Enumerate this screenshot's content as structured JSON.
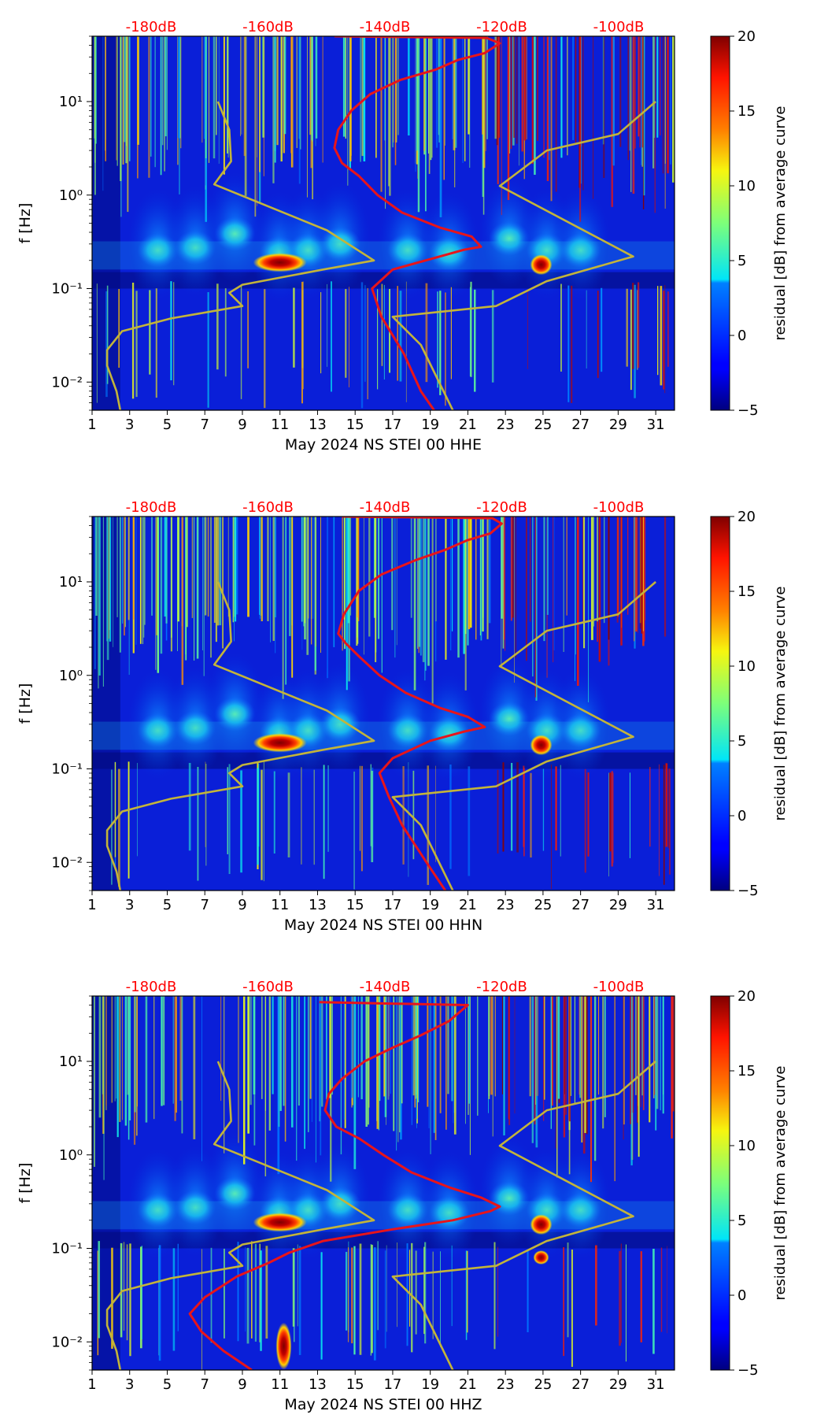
{
  "figure": {
    "colors": {
      "red_curve": "#e8141a",
      "yellow_curve": "#c3b43a",
      "db_label": "#ff0000",
      "axis": "#000000"
    }
  },
  "chart_data": [
    {
      "type": "heatmap",
      "title": "",
      "xlabel": "May 2024 NS STEI 00 HHE",
      "ylabel": "f [Hz]",
      "x_ticks": [
        "1",
        "3",
        "5",
        "7",
        "9",
        "11",
        "13",
        "15",
        "17",
        "19",
        "21",
        "23",
        "25",
        "27",
        "29",
        "31"
      ],
      "y_ticks": [
        "10⁻²",
        "10⁻¹",
        "10⁰",
        "10¹"
      ],
      "xlim": [
        1,
        32
      ],
      "ylim": [
        0.005,
        50
      ],
      "top_ticks": [
        "-180dB",
        "-160dB",
        "-140dB",
        "-120dB",
        "-100dB"
      ],
      "colorbar": {
        "label": "residual [dB] from average curve",
        "ticks": [
          "20",
          "15",
          "10",
          "5",
          "0",
          "−5"
        ],
        "range": [
          -5,
          20
        ]
      },
      "series": [
        {
          "name": "median PSD (red)",
          "points": [
            [
              19.2,
              0.005
            ],
            [
              18.5,
              0.008
            ],
            [
              17.6,
              0.02
            ],
            [
              16.4,
              0.05
            ],
            [
              15.9,
              0.1
            ],
            [
              17,
              0.16
            ],
            [
              19.5,
              0.22
            ],
            [
              20.8,
              0.26
            ],
            [
              21.7,
              0.28
            ],
            [
              21.2,
              0.36
            ],
            [
              19.5,
              0.45
            ],
            [
              17.5,
              0.65
            ],
            [
              16.2,
              1
            ],
            [
              15.2,
              1.6
            ],
            [
              14.3,
              2.2
            ],
            [
              13.9,
              3.2
            ],
            [
              14.1,
              5
            ],
            [
              14.8,
              8
            ],
            [
              15.8,
              12
            ],
            [
              17.4,
              17
            ],
            [
              19.3,
              22
            ],
            [
              20.5,
              28
            ],
            [
              21.9,
              33
            ],
            [
              22.7,
              42
            ],
            [
              22,
              48
            ],
            [
              13.9,
              50
            ]
          ]
        },
        {
          "name": "noise model (yellow)",
          "points": [
            [
              2.5,
              0.005
            ],
            [
              2.3,
              0.008
            ],
            [
              1.8,
              0.015
            ],
            [
              1.8,
              0.022
            ],
            [
              2.6,
              0.035
            ],
            [
              5.2,
              0.048
            ],
            [
              9,
              0.065
            ],
            [
              8.3,
              0.09
            ],
            [
              9,
              0.11
            ],
            [
              13.3,
              0.16
            ],
            [
              16,
              0.2
            ],
            [
              13.5,
              0.42
            ],
            [
              7.5,
              1.3
            ],
            [
              8.4,
              2.3
            ],
            [
              8.3,
              5
            ],
            [
              7.7,
              10
            ]
          ]
        },
        {
          "name": "noise model high (yellow)",
          "points": [
            [
              20.2,
              0.005
            ],
            [
              18.5,
              0.025
            ],
            [
              17,
              0.05
            ],
            [
              22.5,
              0.065
            ],
            [
              25.2,
              0.12
            ],
            [
              29.8,
              0.22
            ],
            [
              22.7,
              1.25
            ],
            [
              25.2,
              3
            ],
            [
              29,
              4.5
            ],
            [
              31,
              10
            ]
          ]
        }
      ]
    },
    {
      "type": "heatmap",
      "title": "",
      "xlabel": "May 2024 NS STEI 00 HHN",
      "ylabel": "f [Hz]",
      "x_ticks": [
        "1",
        "3",
        "5",
        "7",
        "9",
        "11",
        "13",
        "15",
        "17",
        "19",
        "21",
        "23",
        "25",
        "27",
        "29",
        "31"
      ],
      "y_ticks": [
        "10⁻²",
        "10⁻¹",
        "10⁰",
        "10¹"
      ],
      "xlim": [
        1,
        32
      ],
      "ylim": [
        0.005,
        50
      ],
      "top_ticks": [
        "-180dB",
        "-160dB",
        "-140dB",
        "-120dB",
        "-100dB"
      ],
      "colorbar": {
        "label": "residual [dB] from average curve",
        "ticks": [
          "20",
          "15",
          "10",
          "5",
          "0",
          "−5"
        ],
        "range": [
          -5,
          20
        ]
      },
      "series": [
        {
          "name": "median PSD (red)",
          "points": [
            [
              19.8,
              0.005
            ],
            [
              18.8,
              0.01
            ],
            [
              17.5,
              0.025
            ],
            [
              16.8,
              0.05
            ],
            [
              16.3,
              0.09
            ],
            [
              17,
              0.13
            ],
            [
              19,
              0.2
            ],
            [
              20.8,
              0.25
            ],
            [
              21.9,
              0.28
            ],
            [
              21,
              0.36
            ],
            [
              19.5,
              0.45
            ],
            [
              17.7,
              0.65
            ],
            [
              16.3,
              1
            ],
            [
              15.2,
              1.6
            ],
            [
              14.5,
              2.2
            ],
            [
              14.1,
              2.8
            ],
            [
              14.4,
              4.5
            ],
            [
              15.2,
              8
            ],
            [
              16.4,
              12
            ],
            [
              18.2,
              17
            ],
            [
              19.8,
              22
            ],
            [
              21,
              28
            ],
            [
              22.2,
              33
            ],
            [
              22.8,
              42
            ],
            [
              22.3,
              48
            ],
            [
              14.3,
              50
            ]
          ]
        },
        {
          "name": "noise model (yellow)",
          "points": [
            [
              2.5,
              0.005
            ],
            [
              2.3,
              0.008
            ],
            [
              1.8,
              0.015
            ],
            [
              1.8,
              0.022
            ],
            [
              2.6,
              0.035
            ],
            [
              5.2,
              0.048
            ],
            [
              9,
              0.065
            ],
            [
              8.3,
              0.09
            ],
            [
              9,
              0.11
            ],
            [
              13.3,
              0.16
            ],
            [
              16,
              0.2
            ],
            [
              13.5,
              0.42
            ],
            [
              7.5,
              1.3
            ],
            [
              8.4,
              2.3
            ],
            [
              8.3,
              5
            ],
            [
              7.7,
              10
            ]
          ]
        },
        {
          "name": "noise model high (yellow)",
          "points": [
            [
              20.2,
              0.005
            ],
            [
              18.5,
              0.025
            ],
            [
              17,
              0.05
            ],
            [
              22.5,
              0.065
            ],
            [
              25.2,
              0.12
            ],
            [
              29.8,
              0.22
            ],
            [
              22.7,
              1.25
            ],
            [
              25.2,
              3
            ],
            [
              29,
              4.5
            ],
            [
              31,
              10
            ]
          ]
        }
      ]
    },
    {
      "type": "heatmap",
      "title": "",
      "xlabel": "May 2024 NS STEI 00 HHZ",
      "ylabel": "f [Hz]",
      "x_ticks": [
        "1",
        "3",
        "5",
        "7",
        "9",
        "11",
        "13",
        "15",
        "17",
        "19",
        "21",
        "23",
        "25",
        "27",
        "29",
        "31"
      ],
      "y_ticks": [
        "10⁻²",
        "10⁻¹",
        "10⁰",
        "10¹"
      ],
      "xlim": [
        1,
        32
      ],
      "ylim": [
        0.005,
        50
      ],
      "top_ticks": [
        "-180dB",
        "-160dB",
        "-140dB",
        "-120dB",
        "-100dB"
      ],
      "colorbar": {
        "label": "residual [dB] from average curve",
        "ticks": [
          "20",
          "15",
          "10",
          "5",
          "0",
          "−5"
        ],
        "range": [
          -5,
          20
        ]
      },
      "series": [
        {
          "name": "median PSD (red)",
          "points": [
            [
              9.5,
              0.005
            ],
            [
              8,
              0.008
            ],
            [
              6.8,
              0.013
            ],
            [
              6.2,
              0.02
            ],
            [
              7,
              0.03
            ],
            [
              8.7,
              0.05
            ],
            [
              10.4,
              0.07
            ],
            [
              11.5,
              0.09
            ],
            [
              13.3,
              0.12
            ],
            [
              17,
              0.16
            ],
            [
              20.2,
              0.2
            ],
            [
              22.2,
              0.25
            ],
            [
              22.7,
              0.28
            ],
            [
              21.7,
              0.35
            ],
            [
              20,
              0.45
            ],
            [
              18,
              0.65
            ],
            [
              16.5,
              1
            ],
            [
              15.2,
              1.5
            ],
            [
              14,
              2
            ],
            [
              13.4,
              3
            ],
            [
              13.6,
              4.5
            ],
            [
              14.3,
              6.5
            ],
            [
              15.5,
              10
            ],
            [
              17,
              14
            ],
            [
              18.5,
              19
            ],
            [
              20,
              27
            ],
            [
              21,
              40
            ],
            [
              13.1,
              43
            ]
          ]
        },
        {
          "name": "noise model (yellow)",
          "points": [
            [
              2.5,
              0.005
            ],
            [
              2.3,
              0.008
            ],
            [
              1.8,
              0.015
            ],
            [
              1.8,
              0.022
            ],
            [
              2.6,
              0.035
            ],
            [
              5.2,
              0.048
            ],
            [
              9,
              0.065
            ],
            [
              8.3,
              0.09
            ],
            [
              9,
              0.11
            ],
            [
              13.3,
              0.16
            ],
            [
              16,
              0.2
            ],
            [
              13.5,
              0.42
            ],
            [
              7.5,
              1.3
            ],
            [
              8.4,
              2.3
            ],
            [
              8.3,
              5
            ],
            [
              7.7,
              10
            ]
          ]
        },
        {
          "name": "noise model high (yellow)",
          "points": [
            [
              20.2,
              0.005
            ],
            [
              18.5,
              0.025
            ],
            [
              17,
              0.05
            ],
            [
              22.5,
              0.065
            ],
            [
              25.2,
              0.12
            ],
            [
              29.8,
              0.22
            ],
            [
              22.7,
              1.25
            ],
            [
              25.2,
              3
            ],
            [
              29,
              4.5
            ],
            [
              31,
              10
            ]
          ]
        }
      ]
    }
  ]
}
